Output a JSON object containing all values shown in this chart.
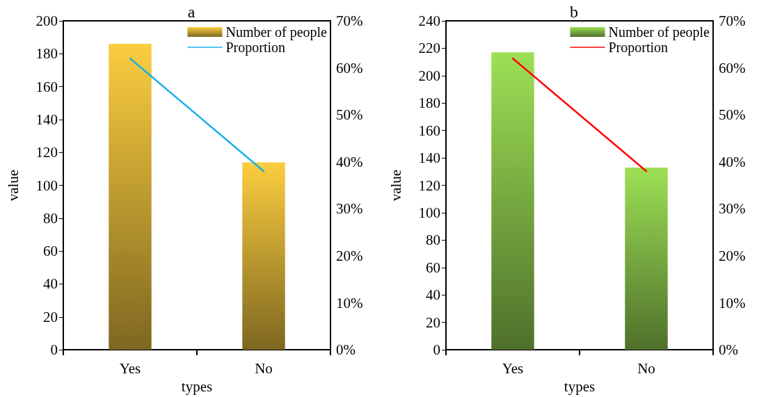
{
  "chart_data": [
    {
      "type": "bar",
      "title": "a",
      "xlabel": "types",
      "ylabel": "value",
      "categories": [
        "Yes",
        "No"
      ],
      "series": [
        {
          "name": "Number of people",
          "color": "#fbcd3f",
          "values": [
            186,
            114
          ]
        },
        {
          "name": "Proportion",
          "type": "line",
          "axis": "y2",
          "color": "#1ab0e8",
          "values": [
            62,
            38
          ]
        }
      ],
      "ylim": [
        0,
        200
      ],
      "yticks": [
        0,
        20,
        40,
        60,
        80,
        100,
        120,
        140,
        160,
        180,
        200
      ],
      "y2lim": [
        0,
        70
      ],
      "y2ticks": [
        {
          "value": 0,
          "label": "0%"
        },
        {
          "value": 10,
          "label": "10%"
        },
        {
          "value": 20,
          "label": "20%"
        },
        {
          "value": 30,
          "label": "30%"
        },
        {
          "value": 40,
          "label": "40%"
        },
        {
          "value": 50,
          "label": "50%"
        },
        {
          "value": 60,
          "label": "60%"
        },
        {
          "value": 70,
          "label": "70%"
        }
      ],
      "legend": "top right",
      "grid": false,
      "marker": "none",
      "line_style": "solid"
    },
    {
      "type": "bar",
      "title": "b",
      "xlabel": "types",
      "ylabel": "value",
      "categories": [
        "Yes",
        "No"
      ],
      "series": [
        {
          "name": "Number of people",
          "color": "#9de055",
          "values": [
            217,
            133
          ]
        },
        {
          "name": "Proportion",
          "type": "line",
          "axis": "y2",
          "color": "#ff0000",
          "values": [
            62,
            38
          ]
        }
      ],
      "ylim": [
        0,
        240
      ],
      "yticks": [
        0,
        20,
        40,
        60,
        80,
        100,
        120,
        140,
        160,
        180,
        200,
        220,
        240
      ],
      "y2lim": [
        0,
        70
      ],
      "y2ticks": [
        {
          "value": 0,
          "label": "0%"
        },
        {
          "value": 10,
          "label": "10%"
        },
        {
          "value": 20,
          "label": "20%"
        },
        {
          "value": 30,
          "label": "30%"
        },
        {
          "value": 40,
          "label": "40%"
        },
        {
          "value": 50,
          "label": "50%"
        },
        {
          "value": 60,
          "label": "60%"
        },
        {
          "value": 70,
          "label": "70%"
        }
      ],
      "legend": "top right",
      "grid": false,
      "marker": "none",
      "line_style": "solid"
    }
  ]
}
